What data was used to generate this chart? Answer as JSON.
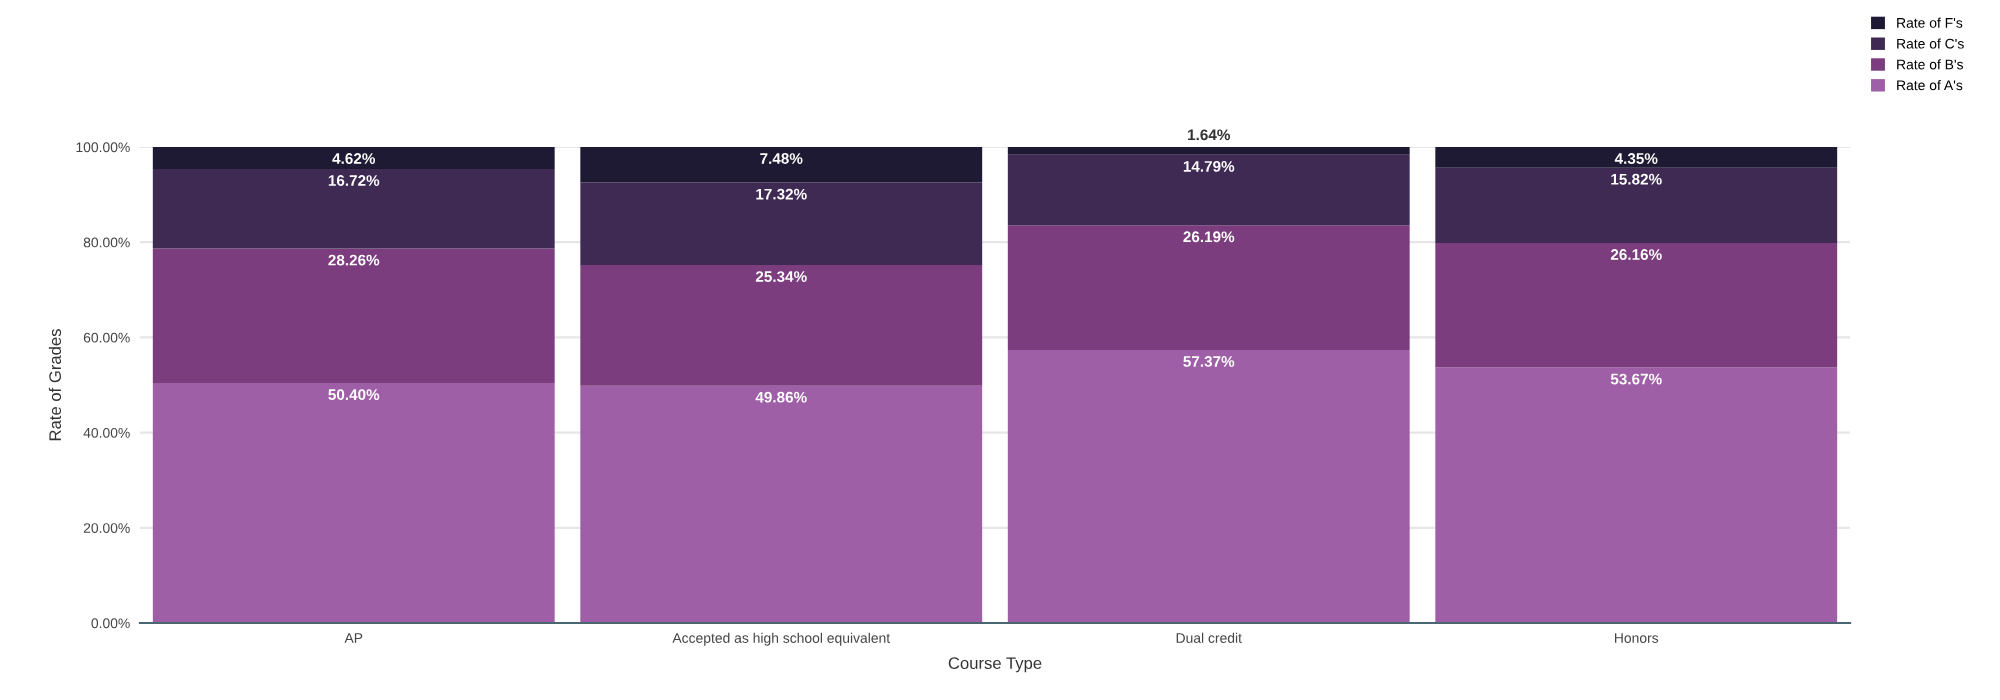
{
  "chart_data": {
    "type": "bar",
    "stacked": true,
    "xlabel": "Course Type",
    "ylabel": "Rate of Grades",
    "categories": [
      "AP",
      "Accepted as high school equivalent",
      "Dual credit",
      "Honors"
    ],
    "series": [
      {
        "name": "Rate of A's",
        "color": "#9e5fa6",
        "values": [
          50.4,
          49.86,
          57.37,
          53.67
        ],
        "value_labels": [
          "50.40%",
          "49.86%",
          "57.37%",
          "53.67%"
        ]
      },
      {
        "name": "Rate of B's",
        "color": "#7b3d7e",
        "values": [
          28.26,
          25.34,
          26.19,
          26.16
        ],
        "value_labels": [
          "28.26%",
          "25.34%",
          "26.19%",
          "26.16%"
        ]
      },
      {
        "name": "Rate of C's",
        "color": "#3e2a53",
        "values": [
          16.72,
          17.32,
          14.79,
          15.82
        ],
        "value_labels": [
          "16.72%",
          "17.32%",
          "14.79%",
          "15.82%"
        ]
      },
      {
        "name": "Rate of F's",
        "color": "#1f1a33",
        "values": [
          4.62,
          7.48,
          1.64,
          4.35
        ],
        "value_labels": [
          "4.62%",
          "7.48%",
          "1.64%",
          "4.35%"
        ]
      }
    ],
    "ylim": [
      0,
      100
    ],
    "yticks": [
      {
        "value": 0,
        "label": "0.00%"
      },
      {
        "value": 20,
        "label": "20.00%"
      },
      {
        "value": 40,
        "label": "40.00%"
      },
      {
        "value": 60,
        "label": "60.00%"
      },
      {
        "value": 80,
        "label": "80.00%"
      },
      {
        "value": 100,
        "label": "100.00%"
      }
    ],
    "grid": true,
    "legend": "top right"
  }
}
